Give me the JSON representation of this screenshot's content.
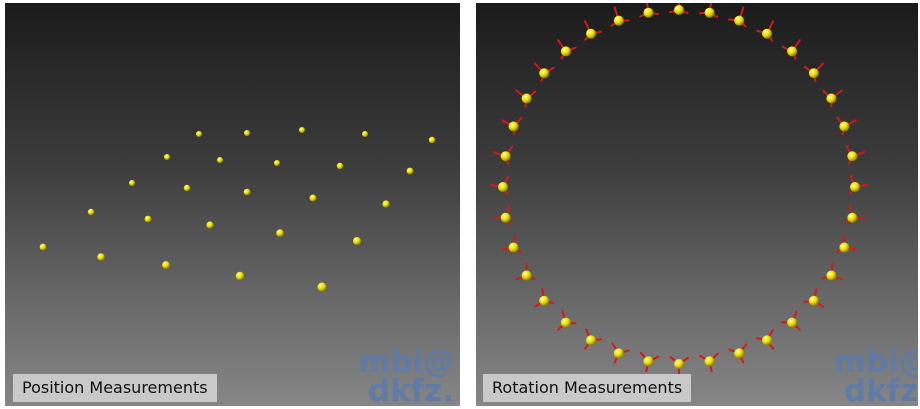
{
  "panels": {
    "position": {
      "caption": "Position Measurements",
      "logo_line1": "mbi@",
      "logo_line2": "dkfz."
    },
    "rotation": {
      "caption": "Rotation Measurements",
      "logo_line1": "mbi@",
      "logo_line2": "dkfz."
    }
  },
  "colors": {
    "sphere": "#e8dc00",
    "sphere_highlight": "#ffff8a",
    "axis": "#d11a1a",
    "logo": "#5d7baa",
    "caption_bg": "#c9c9c9"
  }
}
